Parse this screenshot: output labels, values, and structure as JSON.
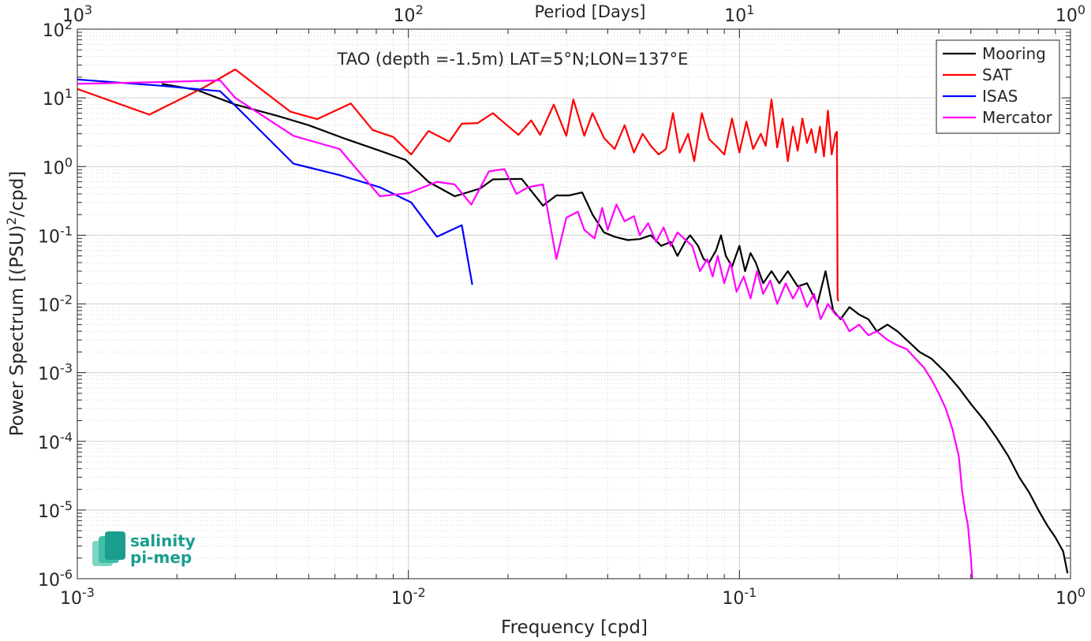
{
  "chart_data": {
    "type": "line",
    "title": "TAO (depth =-1.5m) LAT=5°N;LON=137°E",
    "xlabel": "Frequency [cpd]",
    "ylabel": "Power Spectrum [(PSU)²/cpd]",
    "top_axis_label": "Period [Days]",
    "x_scale": "log",
    "y_scale": "log",
    "xlim": [
      0.001,
      1
    ],
    "ylim": [
      1e-06,
      100
    ],
    "grid": true,
    "minor_grid": true,
    "legend_position": "top-right",
    "x_ticks": [
      {
        "value": 0.001,
        "base": "10",
        "exp": "-3"
      },
      {
        "value": 0.01,
        "base": "10",
        "exp": "-2"
      },
      {
        "value": 0.1,
        "base": "10",
        "exp": "-1"
      },
      {
        "value": 1,
        "base": "10",
        "exp": "0"
      }
    ],
    "top_ticks": [
      {
        "value": 0.001,
        "base": "10",
        "exp": "3"
      },
      {
        "value": 0.01,
        "base": "10",
        "exp": "2"
      },
      {
        "value": 0.1,
        "base": "10",
        "exp": "1"
      },
      {
        "value": 1,
        "base": "10",
        "exp": "0"
      }
    ],
    "y_ticks": [
      {
        "value": 100,
        "base": "10",
        "exp": "2"
      },
      {
        "value": 10,
        "base": "10",
        "exp": "1"
      },
      {
        "value": 1,
        "base": "10",
        "exp": "0"
      },
      {
        "value": 0.1,
        "base": "10",
        "exp": "-1"
      },
      {
        "value": 0.01,
        "base": "10",
        "exp": "-2"
      },
      {
        "value": 0.001,
        "base": "10",
        "exp": "-3"
      },
      {
        "value": 0.0001,
        "base": "10",
        "exp": "-4"
      },
      {
        "value": 1e-05,
        "base": "10",
        "exp": "-5"
      },
      {
        "value": 1e-06,
        "base": "10",
        "exp": "-6"
      }
    ],
    "series": [
      {
        "name": "Mooring",
        "color": "#000000",
        "points": [
          [
            0.0018,
            16
          ],
          [
            0.0023,
            13
          ],
          [
            0.003,
            8
          ],
          [
            0.004,
            5.5
          ],
          [
            0.005,
            4
          ],
          [
            0.0065,
            2.5
          ],
          [
            0.0082,
            1.7
          ],
          [
            0.0098,
            1.25
          ],
          [
            0.0115,
            0.6
          ],
          [
            0.0138,
            0.37
          ],
          [
            0.0165,
            0.48
          ],
          [
            0.018,
            0.65
          ],
          [
            0.021,
            0.66
          ],
          [
            0.022,
            0.66
          ],
          [
            0.0255,
            0.27
          ],
          [
            0.028,
            0.38
          ],
          [
            0.0305,
            0.38
          ],
          [
            0.0335,
            0.42
          ],
          [
            0.036,
            0.2
          ],
          [
            0.039,
            0.11
          ],
          [
            0.042,
            0.095
          ],
          [
            0.046,
            0.085
          ],
          [
            0.05,
            0.088
          ],
          [
            0.054,
            0.1
          ],
          [
            0.058,
            0.07
          ],
          [
            0.062,
            0.08
          ],
          [
            0.065,
            0.05
          ],
          [
            0.069,
            0.085
          ],
          [
            0.071,
            0.1
          ],
          [
            0.075,
            0.07
          ],
          [
            0.078,
            0.045
          ],
          [
            0.081,
            0.04
          ],
          [
            0.085,
            0.06
          ],
          [
            0.088,
            0.1
          ],
          [
            0.091,
            0.05
          ],
          [
            0.095,
            0.035
          ],
          [
            0.1,
            0.07
          ],
          [
            0.104,
            0.03
          ],
          [
            0.108,
            0.055
          ],
          [
            0.112,
            0.04
          ],
          [
            0.118,
            0.02
          ],
          [
            0.125,
            0.03
          ],
          [
            0.132,
            0.02
          ],
          [
            0.14,
            0.03
          ],
          [
            0.15,
            0.018
          ],
          [
            0.16,
            0.02
          ],
          [
            0.172,
            0.01
          ],
          [
            0.182,
            0.03
          ],
          [
            0.192,
            0.008
          ],
          [
            0.202,
            0.006
          ],
          [
            0.215,
            0.009
          ],
          [
            0.23,
            0.007
          ],
          [
            0.245,
            0.006
          ],
          [
            0.26,
            0.004
          ],
          [
            0.28,
            0.005
          ],
          [
            0.3,
            0.004
          ],
          [
            0.32,
            0.003
          ],
          [
            0.35,
            0.002
          ],
          [
            0.38,
            0.0016
          ],
          [
            0.42,
            0.001
          ],
          [
            0.46,
            0.0006
          ],
          [
            0.5,
            0.00035
          ],
          [
            0.55,
            0.0002
          ],
          [
            0.6,
            0.00011
          ],
          [
            0.65,
            6e-05
          ],
          [
            0.7,
            3e-05
          ],
          [
            0.75,
            1.8e-05
          ],
          [
            0.8,
            1e-05
          ],
          [
            0.85,
            6e-06
          ],
          [
            0.9,
            4e-06
          ],
          [
            0.95,
            2.5e-06
          ],
          [
            0.98,
            1.2e-06
          ]
        ]
      },
      {
        "name": "SAT",
        "color": "#ff0000",
        "points": [
          [
            0.001,
            13.5
          ],
          [
            0.00165,
            5.7
          ],
          [
            0.0024,
            14
          ],
          [
            0.003,
            26
          ],
          [
            0.0044,
            6.3
          ],
          [
            0.0053,
            4.9
          ],
          [
            0.0067,
            8.3
          ],
          [
            0.0078,
            3.4
          ],
          [
            0.009,
            2.7
          ],
          [
            0.0102,
            1.5
          ],
          [
            0.0115,
            3.3
          ],
          [
            0.0133,
            2.3
          ],
          [
            0.0145,
            4.2
          ],
          [
            0.0162,
            4.3
          ],
          [
            0.018,
            6
          ],
          [
            0.0195,
            4.3
          ],
          [
            0.0215,
            2.9
          ],
          [
            0.0235,
            4.7
          ],
          [
            0.025,
            2.9
          ],
          [
            0.0275,
            8
          ],
          [
            0.03,
            2.8
          ],
          [
            0.0315,
            9.5
          ],
          [
            0.034,
            2.8
          ],
          [
            0.036,
            6
          ],
          [
            0.039,
            2.6
          ],
          [
            0.042,
            1.8
          ],
          [
            0.045,
            4
          ],
          [
            0.048,
            1.6
          ],
          [
            0.051,
            3
          ],
          [
            0.054,
            2
          ],
          [
            0.057,
            1.5
          ],
          [
            0.06,
            1.8
          ],
          [
            0.063,
            6
          ],
          [
            0.066,
            1.6
          ],
          [
            0.07,
            3
          ],
          [
            0.073,
            1.2
          ],
          [
            0.077,
            6
          ],
          [
            0.081,
            2.5
          ],
          [
            0.085,
            2
          ],
          [
            0.09,
            1.5
          ],
          [
            0.095,
            5
          ],
          [
            0.1,
            1.6
          ],
          [
            0.105,
            4.5
          ],
          [
            0.11,
            1.8
          ],
          [
            0.116,
            3
          ],
          [
            0.12,
            2
          ],
          [
            0.125,
            9.5
          ],
          [
            0.13,
            1.9
          ],
          [
            0.135,
            5
          ],
          [
            0.14,
            1.2
          ],
          [
            0.145,
            3.8
          ],
          [
            0.15,
            1.7
          ],
          [
            0.155,
            5
          ],
          [
            0.16,
            2.2
          ],
          [
            0.165,
            3.5
          ],
          [
            0.17,
            1.6
          ],
          [
            0.175,
            3.8
          ],
          [
            0.18,
            1.4
          ],
          [
            0.185,
            6.5
          ],
          [
            0.19,
            1.5
          ],
          [
            0.195,
            3
          ],
          [
            0.197,
            3.2
          ],
          [
            0.198,
            0.012
          ],
          [
            0.199,
            0.011
          ]
        ]
      },
      {
        "name": "ISAS",
        "color": "#0000ff",
        "points": [
          [
            0.001,
            18.5
          ],
          [
            0.0018,
            15
          ],
          [
            0.0027,
            12.5
          ],
          [
            0.003,
            7.7
          ],
          [
            0.0045,
            1.1
          ],
          [
            0.0062,
            0.75
          ],
          [
            0.0082,
            0.5
          ],
          [
            0.0102,
            0.3
          ],
          [
            0.0122,
            0.095
          ],
          [
            0.0145,
            0.14
          ],
          [
            0.0156,
            0.019
          ]
        ]
      },
      {
        "name": "Mercator",
        "color": "#ff00ff",
        "points": [
          [
            0.001,
            16
          ],
          [
            0.0018,
            17
          ],
          [
            0.0027,
            18
          ],
          [
            0.003,
            10
          ],
          [
            0.0045,
            2.8
          ],
          [
            0.0062,
            1.8
          ],
          [
            0.0082,
            0.37
          ],
          [
            0.01,
            0.41
          ],
          [
            0.0122,
            0.6
          ],
          [
            0.0138,
            0.55
          ],
          [
            0.0155,
            0.28
          ],
          [
            0.0175,
            0.85
          ],
          [
            0.0195,
            0.92
          ],
          [
            0.0212,
            0.4
          ],
          [
            0.023,
            0.5
          ],
          [
            0.0255,
            0.55
          ],
          [
            0.028,
            0.045
          ],
          [
            0.03,
            0.18
          ],
          [
            0.0325,
            0.22
          ],
          [
            0.034,
            0.12
          ],
          [
            0.0365,
            0.09
          ],
          [
            0.0385,
            0.25
          ],
          [
            0.04,
            0.12
          ],
          [
            0.0425,
            0.28
          ],
          [
            0.045,
            0.16
          ],
          [
            0.048,
            0.19
          ],
          [
            0.05,
            0.1
          ],
          [
            0.053,
            0.15
          ],
          [
            0.056,
            0.08
          ],
          [
            0.059,
            0.13
          ],
          [
            0.062,
            0.07
          ],
          [
            0.065,
            0.11
          ],
          [
            0.068,
            0.09
          ],
          [
            0.072,
            0.07
          ],
          [
            0.076,
            0.03
          ],
          [
            0.08,
            0.045
          ],
          [
            0.083,
            0.025
          ],
          [
            0.086,
            0.05
          ],
          [
            0.09,
            0.02
          ],
          [
            0.094,
            0.04
          ],
          [
            0.098,
            0.015
          ],
          [
            0.103,
            0.025
          ],
          [
            0.108,
            0.012
          ],
          [
            0.113,
            0.03
          ],
          [
            0.118,
            0.014
          ],
          [
            0.124,
            0.022
          ],
          [
            0.13,
            0.01
          ],
          [
            0.138,
            0.02
          ],
          [
            0.145,
            0.012
          ],
          [
            0.152,
            0.018
          ],
          [
            0.16,
            0.009
          ],
          [
            0.168,
            0.014
          ],
          [
            0.176,
            0.006
          ],
          [
            0.185,
            0.01
          ],
          [
            0.195,
            0.007
          ],
          [
            0.205,
            0.006
          ],
          [
            0.215,
            0.004
          ],
          [
            0.23,
            0.005
          ],
          [
            0.245,
            0.0035
          ],
          [
            0.26,
            0.004
          ],
          [
            0.28,
            0.003
          ],
          [
            0.3,
            0.0025
          ],
          [
            0.32,
            0.0022
          ],
          [
            0.34,
            0.0016
          ],
          [
            0.36,
            0.0012
          ],
          [
            0.38,
            0.0008
          ],
          [
            0.4,
            0.0005
          ],
          [
            0.42,
            0.0003
          ],
          [
            0.44,
            0.00015
          ],
          [
            0.46,
            6e-05
          ],
          [
            0.47,
            2e-05
          ],
          [
            0.48,
            1e-05
          ],
          [
            0.49,
            6e-06
          ],
          [
            0.5,
            2e-06
          ],
          [
            0.505,
            1e-06
          ]
        ]
      }
    ]
  },
  "logo": {
    "line1": "salinity",
    "line2": "pi-mep",
    "color": "#1a9e8f"
  }
}
